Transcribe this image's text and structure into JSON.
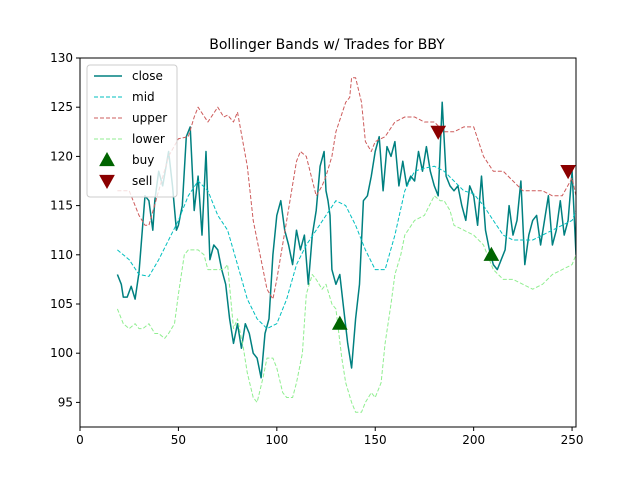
{
  "chart_data": {
    "type": "line",
    "title": "Bollinger Bands w/ Trades for BBY",
    "xlabel": "",
    "ylabel": "",
    "xlim": [
      0,
      252
    ],
    "ylim": [
      92.5,
      130
    ],
    "xticks": [
      0,
      50,
      100,
      150,
      200,
      250
    ],
    "yticks": [
      95,
      100,
      105,
      110,
      115,
      120,
      125,
      130
    ],
    "legend_position": "top-left",
    "series": [
      {
        "name": "close",
        "color": "#008080",
        "style": "solid",
        "x": [
          19,
          21,
          22,
          24,
          26,
          28,
          30,
          33,
          35,
          37,
          38,
          40,
          42,
          45,
          47,
          49,
          50,
          52,
          54,
          56,
          58,
          60,
          62,
          64,
          66,
          68,
          70,
          72,
          74,
          76,
          78,
          80,
          82,
          84,
          86,
          88,
          90,
          92,
          94,
          96,
          98,
          100,
          102,
          104,
          106,
          108,
          110,
          112,
          114,
          116,
          118,
          120,
          122,
          124,
          125,
          126,
          127,
          128,
          130,
          132,
          134,
          136,
          138,
          140,
          142,
          144,
          146,
          148,
          150,
          152,
          154,
          156,
          158,
          160,
          162,
          164,
          166,
          168,
          170,
          172,
          174,
          176,
          178,
          180,
          182,
          184,
          186,
          188,
          190,
          192,
          194,
          196,
          198,
          200,
          202,
          204,
          206,
          208,
          210,
          212,
          214,
          216,
          218,
          220,
          222,
          224,
          226,
          228,
          230,
          232,
          234,
          236,
          238,
          240,
          242,
          244,
          246,
          248,
          250,
          252
        ],
        "values": [
          108,
          107,
          105.7,
          105.7,
          106.8,
          105.5,
          108.2,
          116,
          115.5,
          112.5,
          115.5,
          118.5,
          117,
          120.5,
          117,
          112.5,
          113,
          115,
          122,
          123,
          114.5,
          118,
          112,
          120.5,
          109.5,
          111,
          110.5,
          108.5,
          107,
          103.5,
          101,
          103,
          100.5,
          103,
          102,
          100,
          99.5,
          97.5,
          102,
          103.5,
          110,
          114,
          115.5,
          112.5,
          111,
          109,
          112.5,
          110.5,
          112,
          107,
          112,
          114.5,
          119,
          120.5,
          116.5,
          115.5,
          114,
          108.5,
          107,
          108,
          104.5,
          101,
          98.5,
          103.5,
          107,
          115.5,
          116,
          118,
          120.5,
          122,
          116.5,
          121,
          120,
          121.5,
          117,
          119.5,
          117,
          118,
          117.5,
          120.5,
          118.5,
          121,
          118.5,
          117,
          116,
          125.5,
          118,
          117,
          116.5,
          117,
          115,
          113.5,
          117,
          116,
          113,
          118,
          112.5,
          110.5,
          109,
          108.5,
          109.5,
          110.5,
          115,
          112,
          113.5,
          117.5,
          109,
          112,
          113.5,
          114,
          111,
          113.5,
          116,
          111,
          112.5,
          115.5,
          112,
          113.5,
          118.5,
          110
        ]
      },
      {
        "name": "mid",
        "color": "#00bfbf",
        "style": "dashed",
        "x": [
          19,
          25,
          30,
          35,
          40,
          45,
          50,
          55,
          60,
          65,
          70,
          75,
          80,
          85,
          90,
          95,
          100,
          105,
          110,
          115,
          120,
          125,
          130,
          135,
          140,
          145,
          150,
          155,
          160,
          165,
          170,
          175,
          180,
          185,
          190,
          195,
          200,
          205,
          210,
          215,
          220,
          225,
          230,
          235,
          240,
          245,
          250,
          252
        ],
        "values": [
          110.5,
          109.5,
          108,
          107.8,
          109.5,
          111.5,
          113.5,
          116,
          117.5,
          116.5,
          114,
          112.5,
          109,
          105.5,
          103.5,
          102.5,
          103,
          105.5,
          109,
          111,
          112.5,
          114,
          115.5,
          115,
          113,
          110.5,
          108.5,
          108.5,
          112,
          116.5,
          118.5,
          118.8,
          119,
          118.5,
          117.5,
          116.5,
          116.2,
          115,
          113.5,
          112,
          111.5,
          111.5,
          111.5,
          112,
          112.5,
          113,
          113.5,
          114.5
        ]
      },
      {
        "name": "upper",
        "color": "#cd5c5c",
        "style": "dashed",
        "x": [
          19,
          25,
          30,
          33,
          35,
          40,
          45,
          50,
          55,
          58,
          60,
          65,
          70,
          73,
          75,
          78,
          80,
          85,
          88,
          90,
          95,
          98,
          100,
          105,
          110,
          112,
          115,
          120,
          123,
          125,
          128,
          130,
          135,
          137,
          138,
          140,
          143,
          145,
          148,
          150,
          155,
          160,
          165,
          170,
          175,
          180,
          185,
          190,
          195,
          200,
          205,
          210,
          215,
          220,
          225,
          230,
          235,
          240,
          245,
          250,
          252
        ],
        "values": [
          116.5,
          116.5,
          114,
          113,
          113,
          116.5,
          120,
          121.8,
          122,
          124,
          125,
          123.5,
          125,
          124,
          124.2,
          123.5,
          124.5,
          119,
          113.5,
          111.5,
          106.5,
          105.5,
          107.5,
          113.5,
          119.5,
          120.5,
          120,
          116,
          117,
          118,
          120,
          122.5,
          125.5,
          126,
          128,
          128,
          125.5,
          121.5,
          120.5,
          121.5,
          122,
          123.5,
          124,
          124,
          123.5,
          123.5,
          122.5,
          122.5,
          123,
          123,
          120,
          118.5,
          118.5,
          117.5,
          116.5,
          116.5,
          116.5,
          116,
          116,
          117.8,
          116
        ]
      },
      {
        "name": "lower",
        "color": "#90ee90",
        "style": "dashed",
        "x": [
          19,
          22,
          25,
          28,
          30,
          32,
          35,
          38,
          40,
          43,
          45,
          48,
          50,
          53,
          55,
          58,
          60,
          63,
          65,
          68,
          70,
          73,
          75,
          78,
          80,
          83,
          85,
          88,
          90,
          93,
          95,
          98,
          100,
          103,
          105,
          108,
          110,
          113,
          115,
          118,
          120,
          123,
          125,
          128,
          130,
          133,
          135,
          138,
          140,
          143,
          145,
          148,
          150,
          153,
          155,
          158,
          160,
          163,
          165,
          170,
          175,
          180,
          183,
          185,
          188,
          190,
          195,
          200,
          205,
          210,
          215,
          220,
          225,
          230,
          235,
          240,
          245,
          250,
          252
        ],
        "values": [
          104.5,
          103,
          102.5,
          103,
          102.5,
          102.5,
          103,
          102,
          102,
          101.5,
          102,
          103,
          106,
          110,
          110.5,
          110.5,
          110.5,
          110,
          108.5,
          108.5,
          108.5,
          108.5,
          109,
          102.5,
          103.5,
          100.5,
          98,
          95.5,
          95,
          97.5,
          99.5,
          99.5,
          98.5,
          96,
          95.5,
          95.5,
          97,
          100,
          106,
          108,
          107.5,
          106.5,
          107,
          105,
          104.5,
          99.5,
          97,
          95,
          94,
          94,
          95,
          96,
          95.5,
          97,
          101,
          105,
          108,
          110,
          112,
          113.5,
          114,
          116,
          115.5,
          115.5,
          114.5,
          113,
          112.5,
          112,
          111,
          108.5,
          107.5,
          107.5,
          107,
          106.5,
          107,
          108,
          108.5,
          109,
          110
        ]
      }
    ],
    "markers": [
      {
        "name": "buy",
        "color": "#006400",
        "shape": "triangle-up",
        "x": [
          132,
          209
        ],
        "values": [
          103,
          110
        ]
      },
      {
        "name": "sell",
        "color": "#8b0000",
        "shape": "triangle-down",
        "x": [
          182,
          248
        ],
        "values": [
          122.5,
          118.5
        ]
      }
    ]
  }
}
